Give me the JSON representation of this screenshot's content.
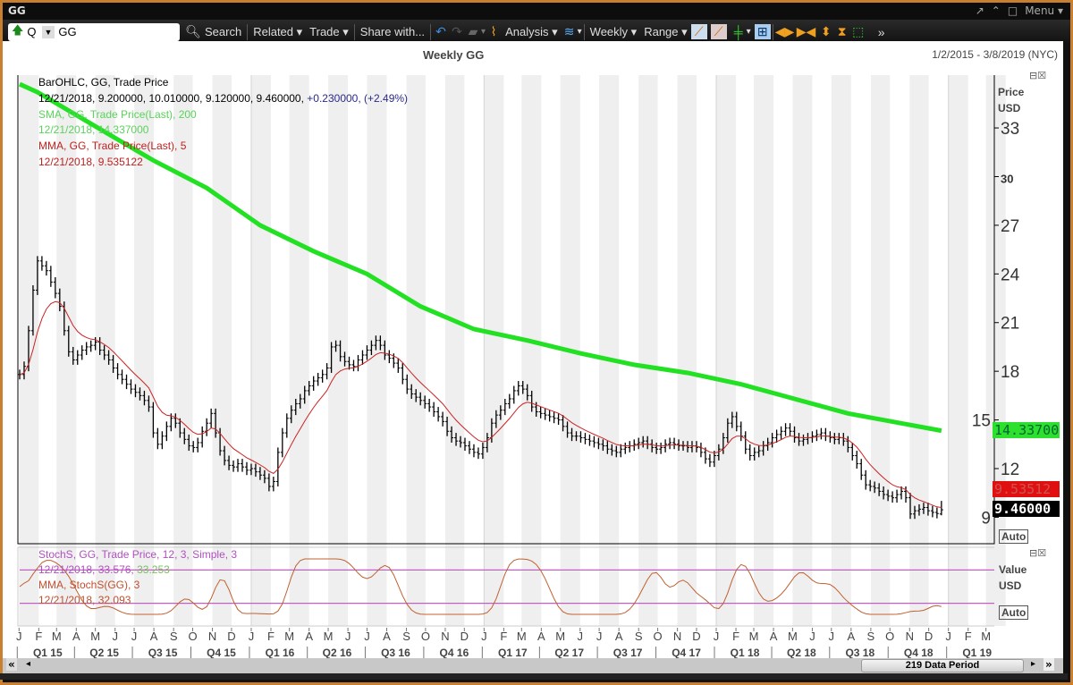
{
  "window": {
    "title": "GG",
    "controls": [
      "↗",
      "⌃",
      "□"
    ],
    "menu": "Menu"
  },
  "toolbar": {
    "security_type": "Q",
    "ticker": "GG",
    "search": "Search",
    "related": "Related",
    "trade": "Trade",
    "share": "Share with...",
    "analysis": "Analysis",
    "periodicity": "Weekly",
    "range": "Range"
  },
  "chart": {
    "subtitle": "Weekly GG",
    "date_range": "1/2/2015 - 3/8/2019 (NYC)",
    "price_axis_label": [
      "Price",
      "USD"
    ],
    "value_axis_label": [
      "Value",
      "USD"
    ],
    "auto": "Auto",
    "data_period": "219 Data Period"
  },
  "legend": {
    "bar_title": "BarOHLC, GG, Trade Price",
    "bar_values": "12/21/2018, 9.200000, 10.010000, 9.120000, 9.460000,",
    "bar_change": "+0.230000, (+2.49%)",
    "sma_title": "SMA, GG, Trade Price(Last),  200",
    "sma_values": "12/21/2018, 14.337000",
    "mma_title": "MMA, GG, Trade Price(Last),  5",
    "mma_values": "12/21/2018, 9.535122",
    "stoch_title": "StochS, GG, Trade Price,  12, 3, Simple, 3",
    "stoch_values": "12/21/2018, 33.576,",
    "stoch_d": "33.253",
    "stoch_mma_title": "MMA, StochS(GG), 3",
    "stoch_mma_values": "12/21/2018, 32.093"
  },
  "tags": {
    "sma": "14.33700",
    "mma": "9.53512",
    "last": "9.46000"
  },
  "colors": {
    "sma": "#22e022",
    "mma": "#cc2222",
    "bar": "#000000",
    "stoch": "#c060c0",
    "stoch_mma": "#c06030",
    "frame": "#c8802f"
  },
  "chart_data": {
    "type": "ohlc",
    "title": "Weekly GG",
    "start_date": "1/2/2015",
    "end_date": "3/8/2019",
    "frequency": "weekly",
    "ylim": [
      8,
      36
    ],
    "y_ticks": [
      33,
      30,
      27,
      24,
      21,
      18,
      15,
      12,
      9
    ],
    "months": [
      "J",
      "F",
      "M",
      "A",
      "M",
      "J",
      "J",
      "A",
      "S",
      "O",
      "N",
      "D",
      "J",
      "F",
      "M",
      "A",
      "M",
      "J",
      "J",
      "A",
      "S",
      "O",
      "N",
      "D",
      "J",
      "F",
      "M",
      "A",
      "M",
      "J",
      "J",
      "A",
      "S",
      "O",
      "N",
      "D",
      "J",
      "F",
      "M",
      "A",
      "M",
      "J",
      "J",
      "A",
      "S",
      "O",
      "N",
      "D",
      "J",
      "F",
      "M"
    ],
    "quarters": [
      "Q1 15",
      "Q2 15",
      "Q3 15",
      "Q4 15",
      "Q1 16",
      "Q2 16",
      "Q3 16",
      "Q4 16",
      "Q1 17",
      "Q2 17",
      "Q3 17",
      "Q4 17",
      "Q1 18",
      "Q2 18",
      "Q3 18",
      "Q4 18",
      "Q1 19"
    ],
    "closes": [
      17.8,
      18.3,
      20.5,
      23,
      24.8,
      24.5,
      24.2,
      23.5,
      22.8,
      22,
      20.5,
      19.2,
      18.7,
      19,
      19.3,
      19.5,
      19.6,
      19.8,
      19.3,
      19,
      18.7,
      18.2,
      17.8,
      17.5,
      17.2,
      16.9,
      16.7,
      16.5,
      16.2,
      15.8,
      14.2,
      13.5,
      14,
      14.6,
      15.1,
      14.8,
      14.2,
      13.8,
      13.4,
      13.3,
      13.6,
      14.3,
      14.8,
      15.4,
      14.2,
      13.1,
      12.5,
      12.2,
      12.1,
      12.3,
      12.1,
      11.9,
      12,
      11.8,
      11.6,
      11.4,
      10.9,
      11.2,
      13,
      14.2,
      15.1,
      15.6,
      16,
      16.3,
      16.8,
      17.1,
      17.4,
      17.6,
      17.8,
      18.2,
      19.5,
      19.6,
      18.9,
      18.6,
      18.4,
      18.3,
      18.7,
      19,
      19.3,
      19.6,
      19.9,
      19.6,
      19,
      18.8,
      18.5,
      18.2,
      17.5,
      16.9,
      16.6,
      16.4,
      16.2,
      16,
      15.8,
      15.5,
      15.2,
      14.9,
      14.3,
      13.9,
      13.7,
      13.6,
      13.4,
      13.2,
      13,
      12.9,
      13.3,
      13.9,
      14.8,
      15.3,
      15.6,
      16,
      16.3,
      16.8,
      17.1,
      16.9,
      16.5,
      15.8,
      15.5,
      15.4,
      15.3,
      15.2,
      15.1,
      15,
      14.6,
      14.2,
      14,
      14,
      13.9,
      13.8,
      13.7,
      13.6,
      13.5,
      13.4,
      13.2,
      13.1,
      13,
      13.2,
      13.3,
      13.4,
      13.5,
      13.6,
      13.7,
      13.5,
      13.3,
      13.2,
      13.3,
      13.5,
      13.6,
      13.5,
      13.4,
      13.4,
      13.3,
      13.4,
      13.3,
      13,
      12.6,
      12.4,
      12.8,
      13.2,
      13.9,
      14.8,
      15.2,
      14.6,
      14,
      13.2,
      12.8,
      13,
      13.1,
      13.4,
      13.6,
      13.9,
      14.1,
      14.3,
      14.5,
      14.3,
      13.9,
      13.7,
      13.8,
      13.9,
      14,
      14.1,
      14.2,
      14,
      13.9,
      13.8,
      13.9,
      13.7,
      13.3,
      12.8,
      12.3,
      11.6,
      11,
      10.9,
      10.8,
      10.6,
      10.4,
      10.3,
      10.2,
      10.4,
      10.6,
      10.2,
      9.2,
      9.4,
      9.5,
      9.6,
      9.4,
      9.3,
      9.23,
      9.46
    ],
    "last_bar": {
      "date": "12/21/2018",
      "open": 9.2,
      "high": 10.01,
      "low": 9.12,
      "close": 9.46
    },
    "sma200": [
      [
        "1/2/2015",
        35.7
      ],
      [
        "1/30/2015",
        35.2
      ],
      [
        "7/31/2015",
        31.0
      ],
      [
        "10/23/2015",
        29.3
      ],
      [
        "1/15/2016",
        27.0
      ],
      [
        "4/8/2016",
        25.4
      ],
      [
        "7/1/2016",
        24.0
      ],
      [
        "9/23/2016",
        22.0
      ],
      [
        "12/16/2016",
        20.6
      ],
      [
        "3/10/2017",
        19.9
      ],
      [
        "6/2/2017",
        19.1
      ],
      [
        "8/25/2017",
        18.4
      ],
      [
        "11/17/2017",
        17.9
      ],
      [
        "2/9/2018",
        17.2
      ],
      [
        "5/4/2018",
        16.3
      ],
      [
        "7/27/2018",
        15.4
      ],
      [
        "12/21/2018",
        14.337
      ]
    ],
    "stoch_levels": [
      80,
      20
    ],
    "stoch_ylim": [
      0,
      100
    ]
  }
}
